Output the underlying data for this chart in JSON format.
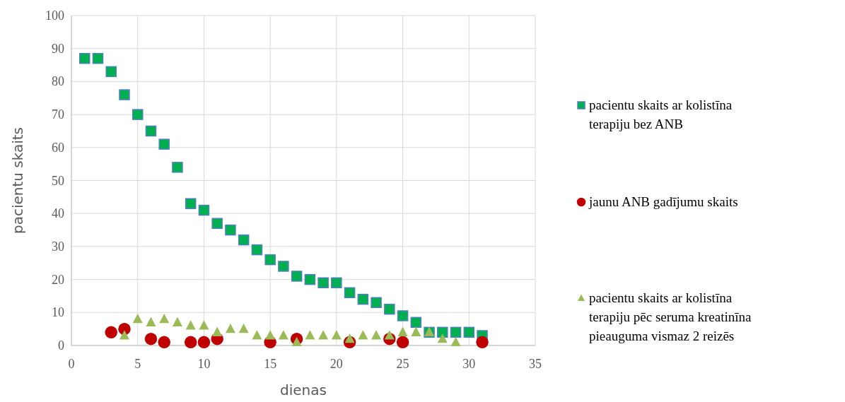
{
  "chart_data": {
    "type": "scatter",
    "xlabel": "dienas",
    "ylabel": "pacientu skaits",
    "xlim": [
      0,
      35
    ],
    "xticks": [
      0,
      5,
      10,
      15,
      20,
      25,
      30,
      35
    ],
    "ylim": [
      0,
      100
    ],
    "yticks": [
      0,
      10,
      20,
      30,
      40,
      50,
      60,
      70,
      80,
      90,
      100
    ],
    "grid": true,
    "legend": "right",
    "series": [
      {
        "name": "pacientu skaits ar kolistīna terapiju bez ANB",
        "color": "#00b050",
        "marker": "square",
        "x": [
          1,
          2,
          3,
          4,
          5,
          6,
          7,
          8,
          9,
          10,
          11,
          12,
          13,
          14,
          15,
          16,
          17,
          18,
          19,
          20,
          21,
          22,
          23,
          24,
          25,
          26,
          27,
          28,
          29,
          30,
          31
        ],
        "values": [
          87,
          87,
          83,
          76,
          70,
          65,
          61,
          54,
          43,
          41,
          37,
          35,
          32,
          29,
          26,
          24,
          21,
          20,
          19,
          19,
          16,
          14,
          13,
          11,
          9,
          7,
          4,
          4,
          4,
          4,
          3
        ]
      },
      {
        "name": "jaunu ANB gadījumu skaits",
        "color": "#c00000",
        "marker": "circle",
        "x": [
          3,
          4,
          6,
          7,
          9,
          10,
          11,
          15,
          17,
          21,
          24,
          25,
          31
        ],
        "values": [
          4,
          5,
          2,
          1,
          1,
          1,
          2,
          1,
          2,
          1,
          2,
          1,
          1
        ]
      },
      {
        "name": "pacientu skaits ar kolistīna terapiju pēc seruma kreatinīna pieauguma vismaz 2 reizēs",
        "color": "#9bbb59",
        "marker": "triangle",
        "x": [
          4,
          5,
          6,
          7,
          8,
          9,
          10,
          11,
          12,
          13,
          14,
          15,
          16,
          17,
          18,
          19,
          20,
          21,
          22,
          23,
          24,
          25,
          26,
          27,
          28,
          29
        ],
        "values": [
          3,
          8,
          7,
          8,
          7,
          6,
          6,
          4,
          5,
          5,
          3,
          3,
          3,
          1,
          3,
          3,
          3,
          2,
          3,
          3,
          3,
          4,
          4,
          4,
          2,
          1
        ]
      }
    ]
  }
}
